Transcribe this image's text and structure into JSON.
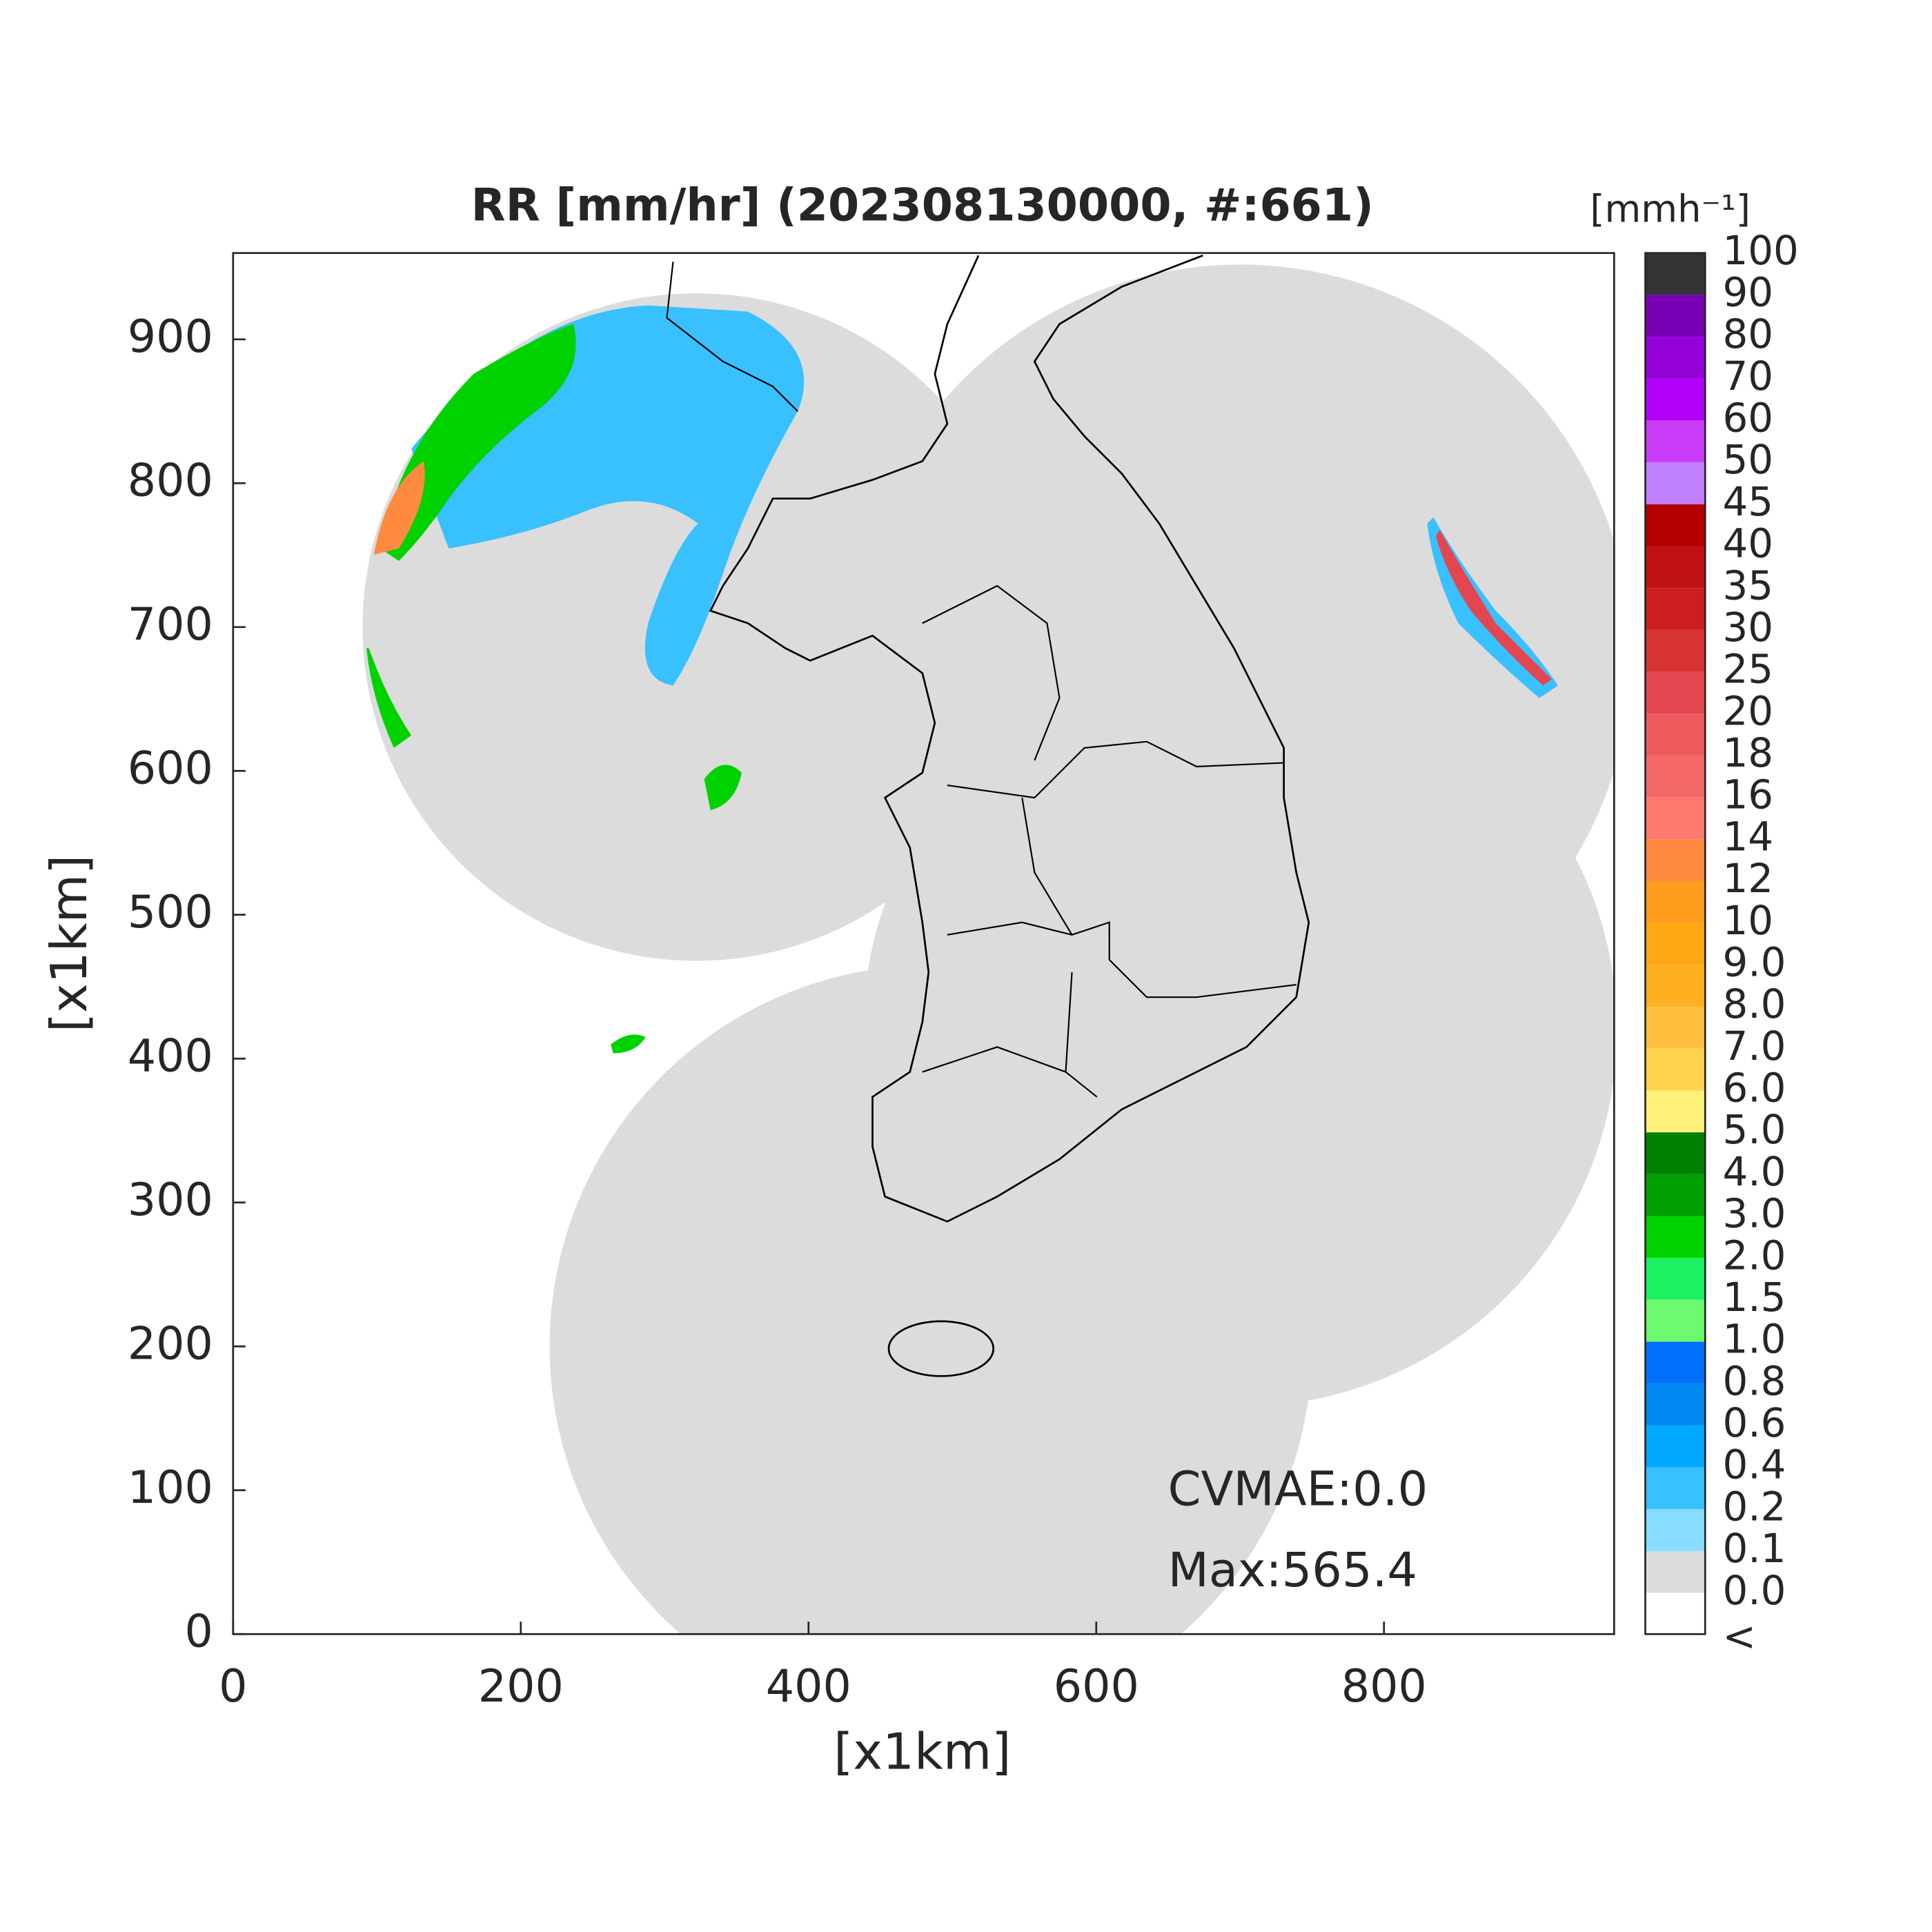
{
  "chart_data": {
    "type": "heatmap",
    "title": "RR [mm/hr] (202308130000, #:661)",
    "xlabel": "[x1km]",
    "ylabel": "[x1km]",
    "xlim": [
      0,
      960
    ],
    "ylim": [
      0,
      960
    ],
    "xticks": [
      0,
      200,
      400,
      600,
      800
    ],
    "yticks": [
      0,
      100,
      200,
      300,
      400,
      500,
      600,
      700,
      800,
      900
    ],
    "annotations": [
      "CVMAE:0.0",
      "Max:565.4"
    ],
    "colorbar": {
      "title": "[mmh⁻¹]",
      "ticks": [
        100,
        90,
        80,
        70,
        60,
        50,
        45,
        40,
        35,
        30,
        25,
        20,
        18,
        16,
        14,
        12,
        10,
        {
          "value": 9,
          "label": "9.0"
        },
        {
          "value": 8,
          "label": "8.0"
        },
        {
          "value": 7,
          "label": "7.0"
        },
        {
          "value": 6,
          "label": "6.0"
        },
        {
          "value": 5,
          "label": "5.0"
        },
        {
          "value": 4,
          "label": "4.0"
        },
        {
          "value": 3,
          "label": "3.0"
        },
        {
          "value": 2,
          "label": "2.0"
        },
        1.5,
        {
          "value": 1,
          "label": "1.0"
        },
        0.8,
        0.6,
        0.4,
        0.2,
        0.1,
        {
          "value": 0,
          "label": "0.0"
        }
      ],
      "under_label": "<",
      "colors": [
        "#333333",
        "#7800b4",
        "#9400d8",
        "#b000f8",
        "#c83cf8",
        "#c080ff",
        "#b40000",
        "#c01212",
        "#cc1e1e",
        "#d83434",
        "#e44650",
        "#ee5a5e",
        "#f56868",
        "#ff7a6e",
        "#ff8a40",
        "#ff9c1e",
        "#ffa814",
        "#ffb020",
        "#ffc040",
        "#ffd24e",
        "#fff07a",
        "#008000",
        "#00a000",
        "#00d200",
        "#1ef064",
        "#6efa6e",
        "#0070ff",
        "#0088f0",
        "#00a8ff",
        "#38c0ff",
        "#88dcff",
        "#dcdcdc",
        "#ffffff"
      ]
    }
  }
}
